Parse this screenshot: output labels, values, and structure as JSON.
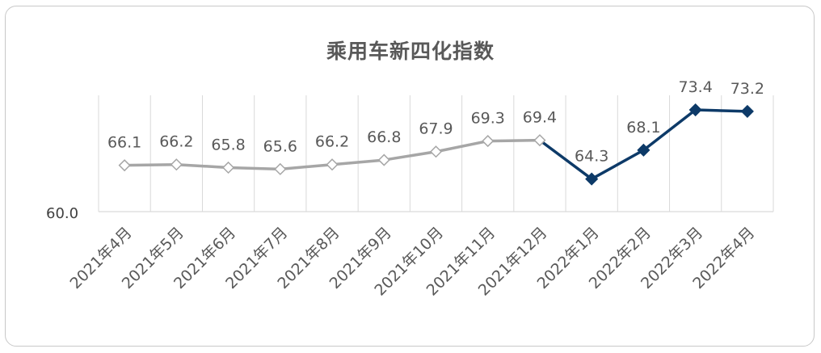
{
  "chart_data": {
    "type": "line",
    "title": "乘用车新四化指数",
    "categories": [
      "2021年4月",
      "2021年5月",
      "2021年6月",
      "2021年7月",
      "2021年8月",
      "2021年9月",
      "2021年10月",
      "2021年11月",
      "2021年12月",
      "2022年1月",
      "2022年2月",
      "2022年3月",
      "2022年4月"
    ],
    "values": [
      66.1,
      66.2,
      65.8,
      65.6,
      66.2,
      66.8,
      67.9,
      69.3,
      69.4,
      64.3,
      68.1,
      73.4,
      73.2
    ],
    "value_labels": [
      "66.1",
      "66.2",
      "65.8",
      "65.6",
      "66.2",
      "66.8",
      "67.9",
      "69.3",
      "69.4",
      "64.3",
      "68.1",
      "73.4",
      "73.2"
    ],
    "y_axis_label": "60.0",
    "ylim": [
      60,
      75
    ],
    "grid": "vertical",
    "segments": [
      {
        "from": 0,
        "to": 8,
        "color": "#a6a6a6",
        "marker": "hollow-diamond"
      },
      {
        "from": 8,
        "to": 12,
        "color": "#0d3a68",
        "marker": "filled-diamond"
      }
    ]
  }
}
